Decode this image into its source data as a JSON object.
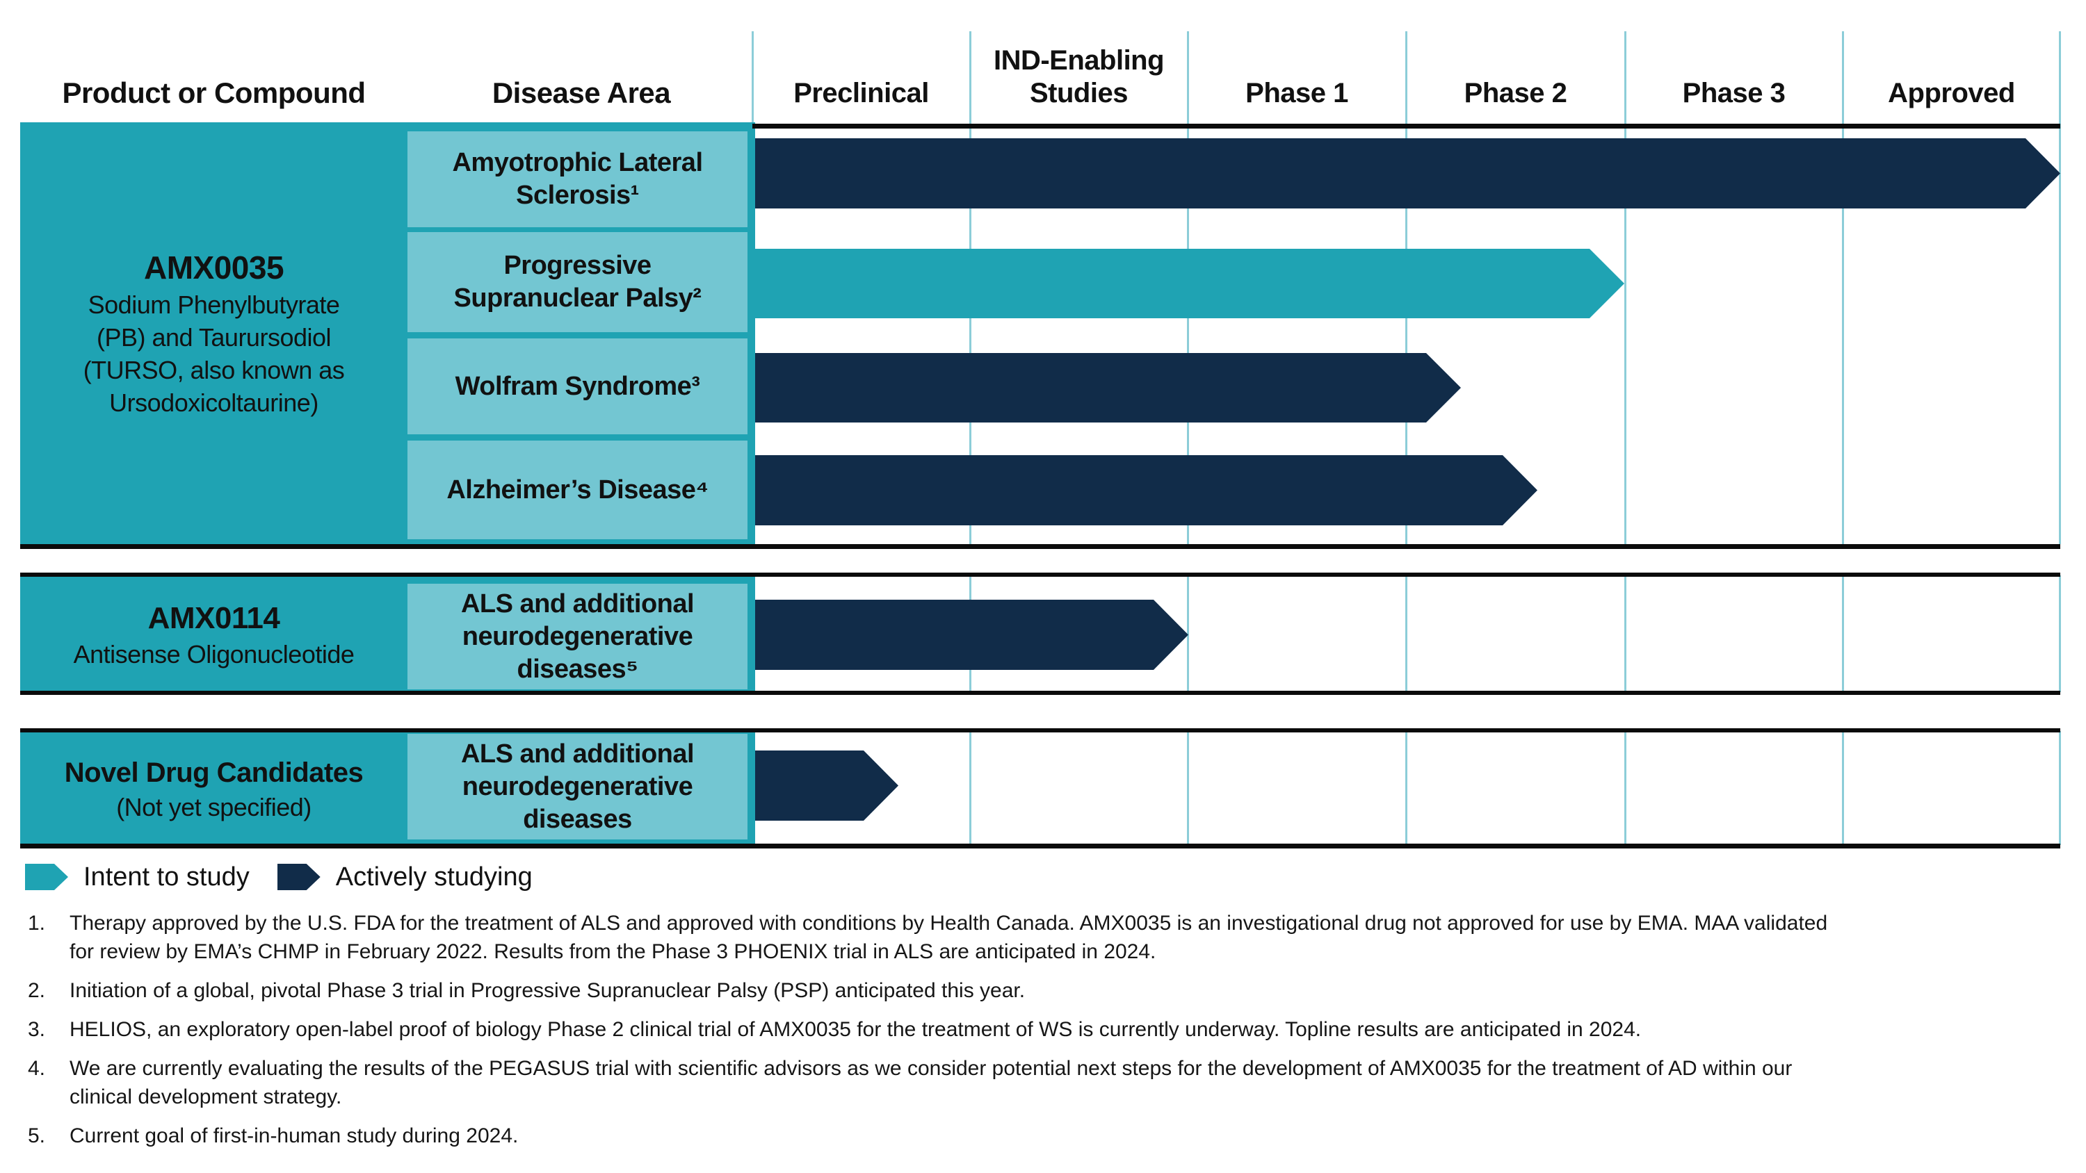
{
  "header": {
    "col_product": "Product or Compound",
    "col_disease": "Disease Area",
    "phases": [
      "Preclinical",
      "IND-Enabling Studies",
      "Phase 1",
      "Phase 2",
      "Phase 3",
      "Approved"
    ]
  },
  "products": [
    {
      "name": "AMX0035",
      "subtitle": "Sodium Phenylbutyrate\n(PB) and Taurursodiol\n(TURSO, also known as\nUrsodoxicoltaurine)"
    },
    {
      "name": "AMX0114",
      "subtitle": "Antisense Oligonucleotide"
    },
    {
      "name": "Novel Drug Candidates",
      "subtitle": "(Not yet specified)"
    }
  ],
  "chart_data": {
    "type": "bar",
    "variant": "pipeline-gantt-arrows",
    "stages": [
      "Preclinical",
      "IND-Enabling Studies",
      "Phase 1",
      "Phase 2",
      "Phase 3",
      "Approved"
    ],
    "progress_scale_note": "progress measured in stage units, 0 = start of Preclinical, 6 = end of Approved",
    "rows": [
      {
        "product": "AMX0035",
        "disease_label": "Amyotrophic Lateral Sclerosis¹",
        "status": "Actively studying",
        "progress": 6.0
      },
      {
        "product": "AMX0035",
        "disease_label": "Progressive Supranuclear Palsy²",
        "status": "Intent to study",
        "progress": 4.0
      },
      {
        "product": "AMX0035",
        "disease_label": "Wolfram Syndrome³",
        "status": "Actively studying",
        "progress": 3.25
      },
      {
        "product": "AMX0035",
        "disease_label": "Alzheimer’s Disease⁴",
        "status": "Actively studying",
        "progress": 3.6
      },
      {
        "product": "AMX0114",
        "disease_label": "ALS and additional neurodegenerative diseases⁵",
        "status": "Actively studying",
        "progress": 2.0
      },
      {
        "product": "Novel Drug Candidates",
        "disease_label": "ALS and additional neurodegenerative diseases",
        "status": "Actively studying",
        "progress": 0.67
      }
    ],
    "legend_position": "bottom-left",
    "grid": true
  },
  "legend": {
    "items": [
      {
        "label": "Intent to study",
        "color": "#1FA3B3"
      },
      {
        "label": "Actively studying",
        "color": "#112C49"
      }
    ]
  },
  "footnotes": {
    "items": [
      {
        "num": "1.",
        "text": "Therapy approved by the U.S. FDA for the treatment of ALS and approved with conditions by Health Canada. AMX0035 is an investigational drug not approved for use by EMA. MAA validated\nfor review by EMA’s CHMP in February 2022. Results from the Phase 3 PHOENIX trial in ALS are anticipated in 2024."
      },
      {
        "num": "2.",
        "text": "Initiation of a global, pivotal Phase 3 trial in Progressive Supranuclear Palsy (PSP) anticipated this year."
      },
      {
        "num": "3.",
        "text": "HELIOS, an exploratory open-label proof of biology Phase 2 clinical trial of AMX0035 for the treatment of WS is currently underway. Topline results are anticipated in 2024."
      },
      {
        "num": "4.",
        "text": "We are currently evaluating the results of the PEGASUS trial with scientific advisors as we consider potential next steps for the development of AMX0035 for the treatment of AD within our\nclinical development strategy."
      },
      {
        "num": "5.",
        "text": "Current goal of first-in-human study during 2024."
      }
    ]
  },
  "colors": {
    "teal": "#1FA3B3",
    "navy": "#112C49",
    "light_teal": "#73C6D2",
    "gridline": "#8CCDD8",
    "rule_black": "#0B0B0B"
  }
}
